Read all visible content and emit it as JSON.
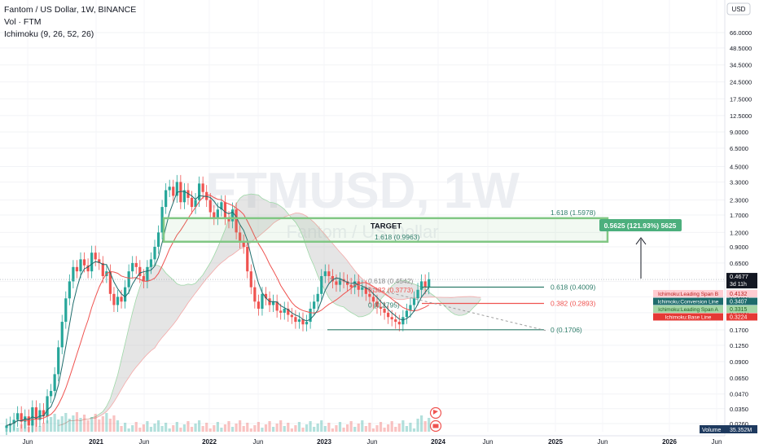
{
  "legend": {
    "title": "Fantom / US Dollar, 1W, BINANCE",
    "vol": "Vol · FTM",
    "ichimoku": "Ichimoku (9, 26, 52, 26)"
  },
  "watermark": {
    "symbol": "FTMUSD, 1W",
    "name": "Fantom / US Dollar"
  },
  "currency": "USD",
  "colors": {
    "up": "#26a69a",
    "down": "#ef5350",
    "green_line": "#2e7d6a",
    "red_line": "#ef5350",
    "target_box": "#81c784",
    "cloud": "#d9d9d9"
  },
  "chart_data": {
    "type": "candlestick",
    "price_scale": "log",
    "y_ticks": [
      "66.0000",
      "48.5000",
      "34.5000",
      "24.5000",
      "17.5000",
      "12.5000",
      "9.0000",
      "6.5000",
      "4.5000",
      "3.3000",
      "2.3000",
      "1.7000",
      "1.2000",
      "0.9000",
      "0.6500",
      "0.4500",
      "0.3300",
      "0.2400",
      "0.1700",
      "0.1250",
      "0.0900",
      "0.0650",
      "0.0470",
      "0.0350",
      "0.0260"
    ],
    "x_ticks": [
      "Jun",
      "2021",
      "Jun",
      "2022",
      "Jun",
      "2023",
      "Jun",
      "2024",
      "Jun",
      "2025",
      "Jun",
      "2026",
      "Jun"
    ],
    "fib_top": [
      {
        "label": "1.618 (1.5978)",
        "price": 1.5978
      },
      {
        "label": "1.618 (0.9963)",
        "price": 0.9963
      },
      {
        "label": "0.618 (0.4542)",
        "price": 0.4542
      },
      {
        "label": "0.382 (0.3773)",
        "price": 0.3773
      },
      {
        "label": "0 (0.2795)",
        "price": 0.2795
      }
    ],
    "fib_bottom": [
      {
        "label": "0.618 (0.4009)",
        "price": 0.4009
      },
      {
        "label": "0.382 (0.2893)",
        "price": 0.2893
      },
      {
        "label": "0 (0.1706)",
        "price": 0.1706
      }
    ],
    "target_label": "TARGET",
    "measure_label": "0.5625 (121.93%) 5625",
    "price_tags": [
      {
        "text": "0.4677",
        "sub": "3d 11h",
        "price": 0.4677,
        "bg": "#131722",
        "fg": "#ffffff"
      },
      {
        "text": "Ichimoku:Leading Span B",
        "value": "0.4132",
        "price": 0.4132,
        "bg": "#ffcdd2",
        "fg": "#b71c1c"
      },
      {
        "text": "Ichimoku:Conversion Line",
        "value": "0.3407",
        "price": 0.3407,
        "bg": "#1e6c6c",
        "fg": "#ffffff"
      },
      {
        "text": "Ichimoku:Leading Span A",
        "value": "0.3315",
        "price": 0.3315,
        "bg": "#a5d6a7",
        "fg": "#1b5e20"
      },
      {
        "text": "Ichimoku:Base Line",
        "value": "0.3224",
        "price": 0.3224,
        "bg": "#e53935",
        "fg": "#ffffff"
      }
    ],
    "volume_label": "Volume",
    "volume_value": "35.352M",
    "candles": [
      0.025,
      0.026,
      0.028,
      0.032,
      0.027,
      0.03,
      0.025,
      0.036,
      0.028,
      0.034,
      0.03,
      0.045,
      0.05,
      0.07,
      0.12,
      0.2,
      0.32,
      0.45,
      0.6,
      0.55,
      0.7,
      0.62,
      0.55,
      0.8,
      0.7,
      0.65,
      0.5,
      0.55,
      0.35,
      0.28,
      0.33,
      0.3,
      0.4,
      0.55,
      0.65,
      0.6,
      0.5,
      0.45,
      0.6,
      0.7,
      0.9,
      1.2,
      2.0,
      2.8,
      3.0,
      2.5,
      3.3,
      2.2,
      2.8,
      2.4,
      2.0,
      2.3,
      3.2,
      2.7,
      2.3,
      1.8,
      1.6,
      1.9,
      2.2,
      1.6,
      1.5,
      1.9,
      1.2,
      1.0,
      0.9,
      0.55,
      0.4,
      0.3,
      0.26,
      0.35,
      0.32,
      0.28,
      0.3,
      0.25,
      0.24,
      0.26,
      0.23,
      0.22,
      0.2,
      0.21,
      0.19,
      0.2,
      0.26,
      0.3,
      0.35,
      0.5,
      0.55,
      0.5,
      0.45,
      0.42,
      0.47,
      0.45,
      0.42,
      0.4,
      0.45,
      0.38,
      0.4,
      0.35,
      0.33,
      0.3,
      0.27,
      0.26,
      0.24,
      0.22,
      0.21,
      0.2,
      0.19,
      0.22,
      0.25,
      0.28,
      0.32,
      0.38,
      0.45,
      0.4,
      0.47
    ]
  }
}
